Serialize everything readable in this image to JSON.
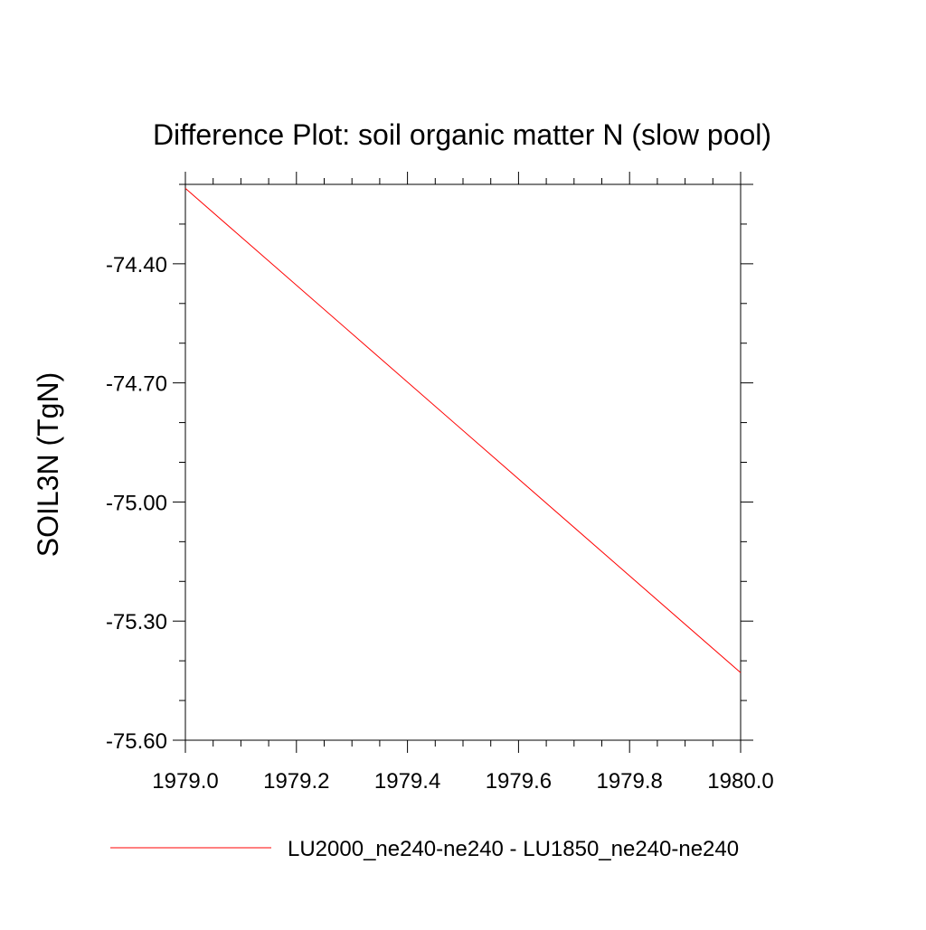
{
  "chart_data": {
    "type": "line",
    "title": "Difference Plot: soil organic matter N (slow pool)",
    "xlabel": "",
    "ylabel": "SOIL3N  (TgN)",
    "xlim": [
      1979.0,
      1980.0
    ],
    "ylim": [
      -75.6,
      -74.2
    ],
    "x_ticks": [
      1979.0,
      1979.2,
      1979.4,
      1979.6,
      1979.8,
      1980.0
    ],
    "x_tick_labels": [
      "1979.0",
      "1979.2",
      "1979.4",
      "1979.6",
      "1979.8",
      "1980.0"
    ],
    "y_ticks": [
      -74.4,
      -74.7,
      -75.0,
      -75.3,
      -75.6
    ],
    "y_tick_labels": [
      "-74.40",
      "-74.70",
      "-75.00",
      "-75.30",
      "-75.60"
    ],
    "grid": false,
    "legend_position": "bottom",
    "series": [
      {
        "name": "LU2000_ne240-ne240 - LU1850_ne240-ne240",
        "color": "#ff0000",
        "x": [
          1979.0,
          1980.0
        ],
        "y": [
          -74.21,
          -75.43
        ]
      }
    ]
  }
}
